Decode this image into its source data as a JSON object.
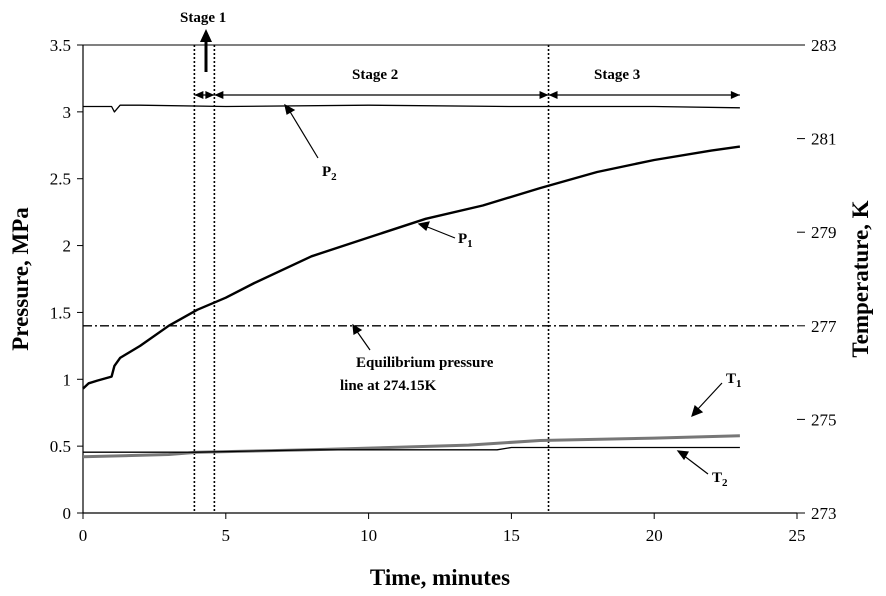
{
  "chart_data": {
    "type": "line",
    "title": "",
    "xlabel": "Time, minutes",
    "ylabel_left": "Pressure, MPa",
    "ylabel_right": "Temperature, K",
    "xlim": [
      0,
      25
    ],
    "ylim_left": [
      0,
      3.5
    ],
    "ylim_right": [
      273,
      283
    ],
    "x_ticks": [
      0,
      5,
      10,
      15,
      20,
      25
    ],
    "y_left_ticks": [
      0,
      0.5,
      1,
      1.5,
      2,
      2.5,
      3,
      3.5
    ],
    "y_right_ticks": [
      273,
      275,
      277,
      279,
      281,
      283
    ],
    "grid": false,
    "legend": "none",
    "series": [
      {
        "name": "P2",
        "axis": "left",
        "x": [
          0,
          1.0,
          1.1,
          1.3,
          2,
          5,
          10,
          15,
          20,
          23
        ],
        "y": [
          3.04,
          3.04,
          3.0,
          3.05,
          3.05,
          3.04,
          3.05,
          3.04,
          3.04,
          3.03
        ]
      },
      {
        "name": "P1",
        "axis": "left",
        "x": [
          0,
          0.2,
          0.5,
          1.0,
          1.1,
          1.3,
          2,
          3,
          4,
          5,
          6,
          8,
          10,
          12,
          14,
          16,
          18,
          20,
          22,
          23
        ],
        "y": [
          0.93,
          0.97,
          0.99,
          1.02,
          1.1,
          1.16,
          1.25,
          1.4,
          1.52,
          1.61,
          1.72,
          1.92,
          2.06,
          2.2,
          2.3,
          2.43,
          2.55,
          2.64,
          2.71,
          2.74
        ]
      },
      {
        "name": "T1",
        "axis": "right",
        "x": [
          0,
          3,
          4,
          8,
          13.5,
          16,
          20,
          23
        ],
        "y": [
          274.2,
          274.25,
          274.3,
          274.35,
          274.45,
          274.55,
          274.6,
          274.65
        ]
      },
      {
        "name": "T2",
        "axis": "right",
        "x": [
          0,
          4,
          8,
          13.5,
          14.5,
          15,
          16,
          23
        ],
        "y": [
          274.3,
          274.3,
          274.35,
          274.35,
          274.35,
          274.4,
          274.4,
          274.4
        ]
      }
    ],
    "equilibrium_line": {
      "y": 1.4,
      "label_line1": "Equilibrium pressure",
      "label_line2": "line at  274.15K"
    },
    "stage_lines": [
      3.9,
      4.6,
      16.3
    ],
    "stages": [
      {
        "label": "Stage 1",
        "x_start": 3.9,
        "x_end": 4.6
      },
      {
        "label": "Stage 2",
        "x_start": 4.6,
        "x_end": 16.3
      },
      {
        "label": "Stage 3",
        "x_start": 16.3,
        "x_end": 23
      }
    ],
    "annotations": [
      {
        "label": "P",
        "sub": "2"
      },
      {
        "label": "P",
        "sub": "1"
      },
      {
        "label": "T",
        "sub": "1"
      },
      {
        "label": "T",
        "sub": "2"
      }
    ]
  }
}
